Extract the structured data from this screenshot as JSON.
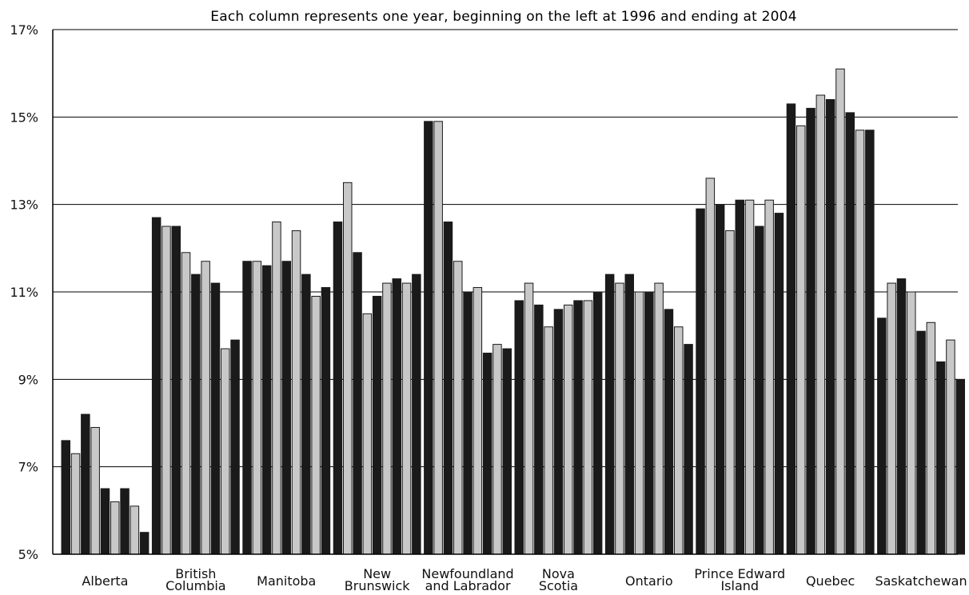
{
  "chart_data": {
    "type": "bar",
    "title": "Each column represents one year, beginning on the left at 1996 and ending at 2004",
    "xlabel": "",
    "ylabel": "",
    "ylim": [
      5,
      17
    ],
    "y_ticks": [
      "5%",
      "7%",
      "9%",
      "11%",
      "13%",
      "15%",
      "17%"
    ],
    "y_tick_values": [
      5,
      7,
      9,
      11,
      13,
      15,
      17
    ],
    "grid": true,
    "legend": "none",
    "colors": {
      "odd_year": "#1a1a1a",
      "even_year": "#c8c8c8",
      "axis": "#000000"
    },
    "categories": [
      [
        "Alberta"
      ],
      [
        "British",
        "Columbia"
      ],
      [
        "Manitoba"
      ],
      [
        "New",
        "Brunswick"
      ],
      [
        "Newfoundland",
        "and Labrador"
      ],
      [
        "Nova",
        "Scotia"
      ],
      [
        "Ontario"
      ],
      [
        "Prince Edward",
        "Island"
      ],
      [
        "Quebec"
      ],
      [
        "Saskatchewan"
      ]
    ],
    "years": [
      1996,
      1997,
      1998,
      1999,
      2000,
      2001,
      2002,
      2003,
      2004
    ],
    "values": [
      [
        7.6,
        7.3,
        8.2,
        7.9,
        6.5,
        6.2,
        6.5,
        6.1,
        5.5
      ],
      [
        12.7,
        12.5,
        12.5,
        11.9,
        11.4,
        11.7,
        11.2,
        9.7,
        9.9
      ],
      [
        11.7,
        11.7,
        11.6,
        12.6,
        11.7,
        12.4,
        11.4,
        10.9,
        11.1
      ],
      [
        12.6,
        13.5,
        11.9,
        10.5,
        10.9,
        11.2,
        11.3,
        11.2,
        11.4
      ],
      [
        14.9,
        14.9,
        12.6,
        11.7,
        11.0,
        11.1,
        9.6,
        9.8,
        9.7
      ],
      [
        10.8,
        11.2,
        10.7,
        10.2,
        10.6,
        10.7,
        10.8,
        10.8,
        11.0
      ],
      [
        11.4,
        11.2,
        11.4,
        11.0,
        11.0,
        11.2,
        10.6,
        10.2,
        9.8
      ],
      [
        12.9,
        13.6,
        13.0,
        12.4,
        13.1,
        13.1,
        12.5,
        13.1,
        12.8
      ],
      [
        15.3,
        14.8,
        15.2,
        15.5,
        15.4,
        16.1,
        15.1,
        14.7,
        14.7
      ],
      [
        10.4,
        11.2,
        11.3,
        11.0,
        10.1,
        10.3,
        9.4,
        9.9,
        9.0
      ]
    ]
  }
}
